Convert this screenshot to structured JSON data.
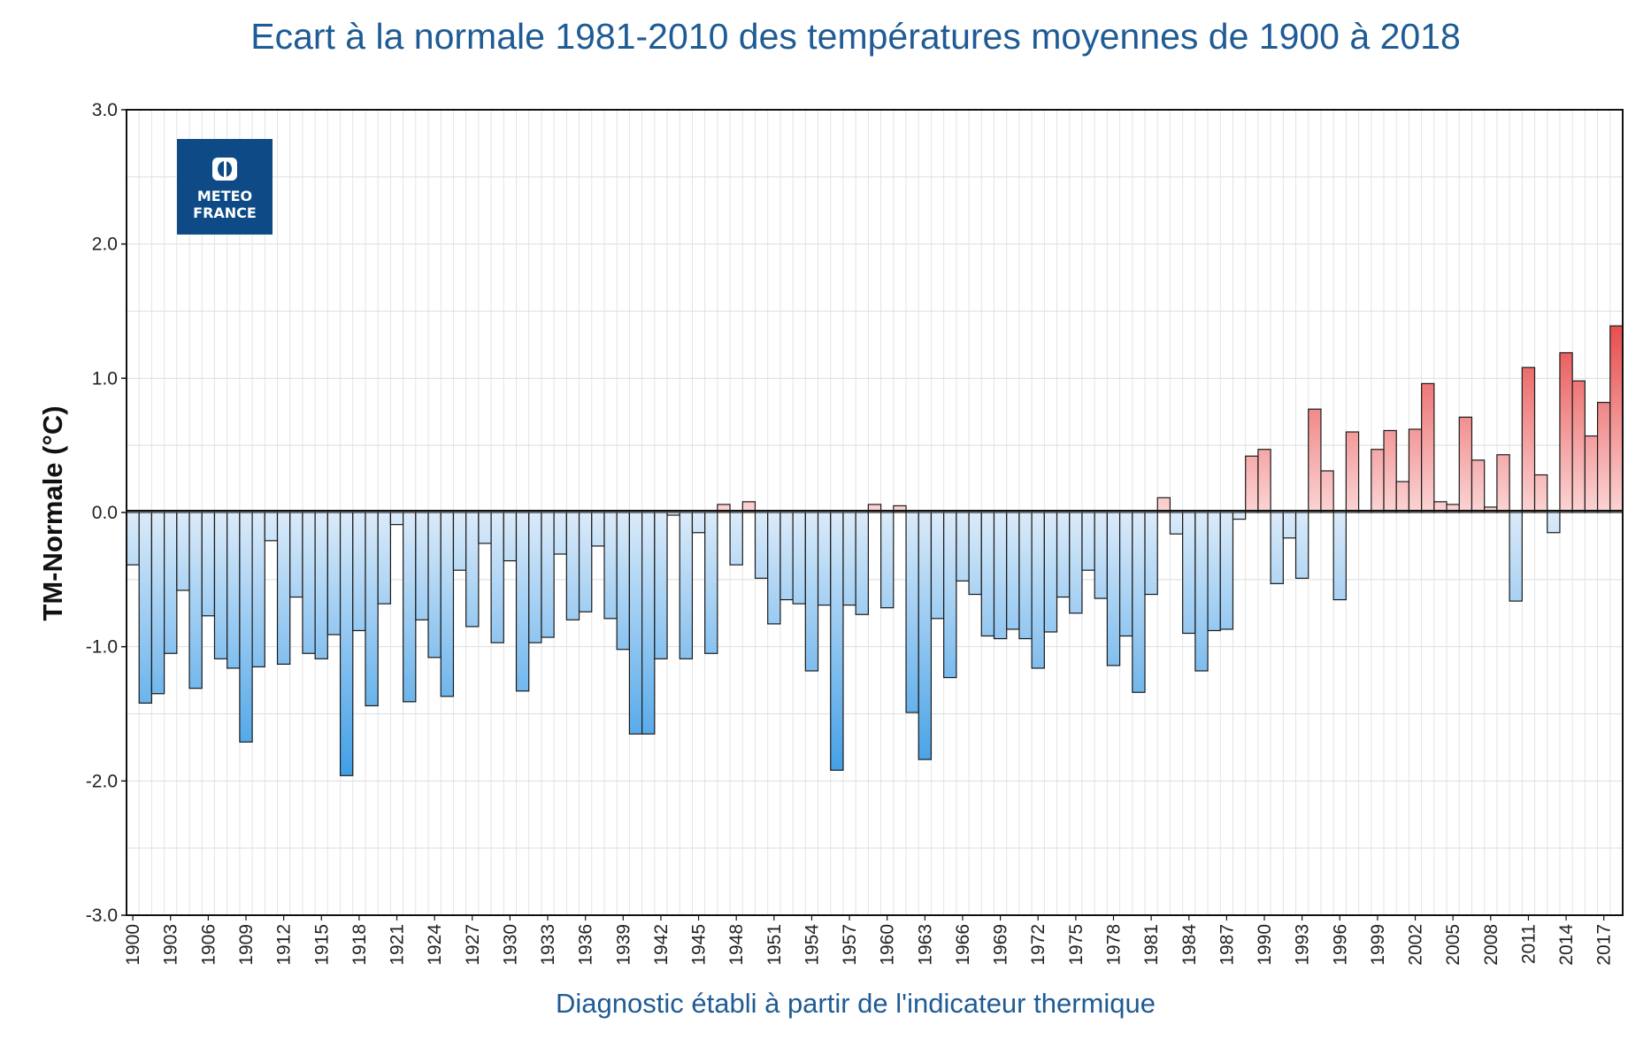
{
  "chart_data": {
    "type": "bar",
    "title": "Ecart à la normale 1981-2010 des températures moyennes de 1900 à 2018",
    "xlabel": "Diagnostic établi à partir de l'indicateur thermique",
    "ylabel": "TM-Normale (°C)",
    "ylim": [
      -3.0,
      3.0
    ],
    "yticks": [
      "3.0",
      "2.0",
      "1.0",
      "0.0",
      "-1.0",
      "-2.0",
      "-3.0"
    ],
    "grid": true,
    "logo": {
      "lines": [
        "METEO",
        "FRANCE"
      ],
      "color": "#0d4a86"
    },
    "colors": {
      "negative_light": "#dcebfa",
      "negative_dark": "#3f9ee6",
      "positive_light": "#fbd3d3",
      "positive_dark": "#e84e4e",
      "title": "#1f5b94"
    },
    "x": [
      1900,
      1901,
      1902,
      1903,
      1904,
      1905,
      1906,
      1907,
      1908,
      1909,
      1910,
      1911,
      1912,
      1913,
      1914,
      1915,
      1916,
      1917,
      1918,
      1919,
      1920,
      1921,
      1922,
      1923,
      1924,
      1925,
      1926,
      1927,
      1928,
      1929,
      1930,
      1931,
      1932,
      1933,
      1934,
      1935,
      1936,
      1937,
      1938,
      1939,
      1940,
      1941,
      1942,
      1943,
      1944,
      1945,
      1946,
      1947,
      1948,
      1949,
      1950,
      1951,
      1952,
      1953,
      1954,
      1955,
      1956,
      1957,
      1958,
      1959,
      1960,
      1961,
      1962,
      1963,
      1964,
      1965,
      1966,
      1967,
      1968,
      1969,
      1970,
      1971,
      1972,
      1973,
      1974,
      1975,
      1976,
      1977,
      1978,
      1979,
      1980,
      1981,
      1982,
      1983,
      1984,
      1985,
      1986,
      1987,
      1988,
      1989,
      1990,
      1991,
      1992,
      1993,
      1994,
      1995,
      1996,
      1997,
      1998,
      1999,
      2000,
      2001,
      2002,
      2003,
      2004,
      2005,
      2006,
      2007,
      2008,
      2009,
      2010,
      2011,
      2012,
      2013,
      2014,
      2015,
      2016,
      2017,
      2018
    ],
    "values": [
      -0.39,
      -1.42,
      -1.35,
      -1.05,
      -0.58,
      -1.31,
      -0.77,
      -1.09,
      -1.16,
      -1.71,
      -1.15,
      -0.21,
      -1.13,
      -0.63,
      -1.05,
      -1.09,
      -0.91,
      -1.96,
      -0.88,
      -1.44,
      -0.68,
      -0.09,
      -1.41,
      -0.8,
      -1.08,
      -1.37,
      -0.43,
      -0.85,
      -0.23,
      -0.97,
      -0.36,
      -1.33,
      -0.97,
      -0.93,
      -0.31,
      -0.8,
      -0.74,
      -0.25,
      -0.79,
      -1.02,
      -1.65,
      -1.65,
      -1.09,
      -0.02,
      -1.09,
      -0.15,
      -1.05,
      0.06,
      -0.39,
      0.08,
      -0.49,
      -0.83,
      -0.65,
      -0.68,
      -1.18,
      -0.69,
      -1.92,
      -0.69,
      -0.76,
      0.06,
      -0.71,
      0.05,
      -1.49,
      -1.84,
      -0.79,
      -1.23,
      -0.51,
      -0.61,
      -0.92,
      -0.94,
      -0.87,
      -0.94,
      -1.16,
      -0.89,
      -0.63,
      -0.75,
      -0.43,
      -0.64,
      -1.14,
      -0.92,
      -1.34,
      -0.61,
      0.11,
      -0.16,
      -0.9,
      -1.18,
      -0.88,
      -0.87,
      -0.05,
      0.42,
      0.47,
      -0.53,
      -0.19,
      -0.49,
      0.77,
      0.31,
      -0.65,
      0.6,
      0.0,
      0.47,
      0.61,
      0.23,
      0.62,
      0.96,
      0.08,
      0.06,
      0.71,
      0.39,
      0.04,
      0.43,
      -0.66,
      1.08,
      0.28,
      -0.15,
      1.19,
      0.98,
      0.57,
      0.82,
      1.39
    ]
  }
}
